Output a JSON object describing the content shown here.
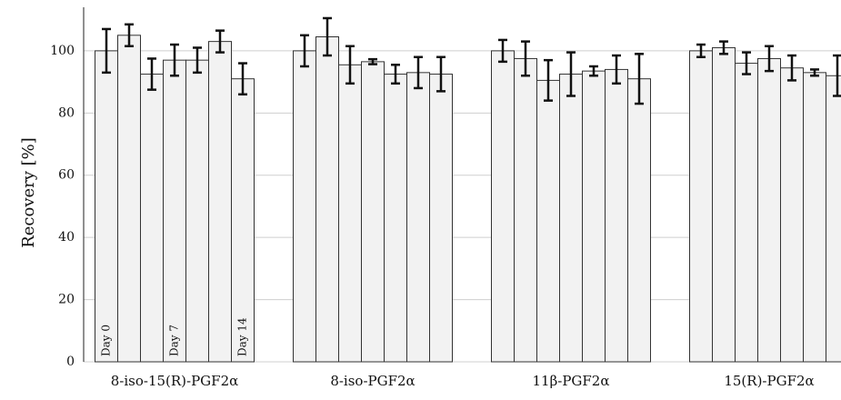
{
  "chart_data": {
    "type": "bar",
    "ylabel": "Recovery [%]",
    "categories": [
      "8-iso-15(R)-PGF2α",
      "8-iso-PGF2α",
      "11β-PGF2α",
      "15(R)-PGF2α"
    ],
    "series": [
      {
        "name": "Day 0",
        "color": "#f2f2f2",
        "values": [
          100,
          100,
          100,
          100
        ],
        "errors": [
          7,
          5,
          3.5,
          2
        ]
      },
      {
        "color": "#f2f2f2",
        "values": [
          105,
          104.5,
          97.5,
          101
        ],
        "errors": [
          3.5,
          6,
          5.5,
          2
        ]
      },
      {
        "color": "#f2f2f2",
        "values": [
          92.5,
          95.5,
          90.5,
          96
        ],
        "errors": [
          5,
          6,
          6.5,
          3.5
        ]
      },
      {
        "name": "Day 7",
        "color": "#f2f2f2",
        "values": [
          97,
          96.5,
          92.5,
          97.5
        ],
        "errors": [
          5,
          0.8,
          7,
          4
        ]
      },
      {
        "color": "#f2f2f2",
        "values": [
          97,
          92.5,
          93.5,
          94.5
        ],
        "errors": [
          4,
          3,
          1.5,
          4
        ]
      },
      {
        "color": "#f2f2f2",
        "values": [
          103,
          93,
          94,
          93
        ],
        "errors": [
          3.5,
          5,
          4.5,
          1
        ]
      },
      {
        "name": "Day 14",
        "color": "#f2f2f2",
        "values": [
          91,
          92.5,
          91,
          92
        ],
        "errors": [
          5,
          5.5,
          8,
          6.5
        ]
      }
    ],
    "ylim": [
      0,
      114
    ],
    "yticks": [
      0,
      20,
      40,
      60,
      80,
      100
    ],
    "grid": true
  }
}
